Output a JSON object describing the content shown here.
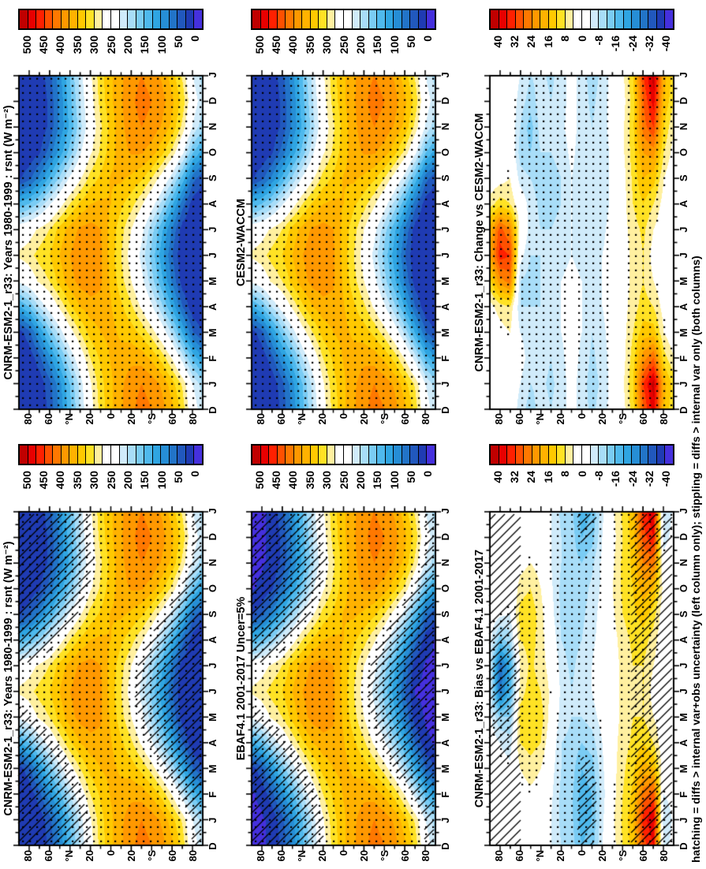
{
  "footnote": "hatching = diffs > internal var+obs uncertainty (left column only); stippling = diffs > internal var only (both columns)",
  "chart_data": {
    "type": "heatmap",
    "description": "Six latitude-by-month contour (Hovmoller) panels of TOA net shortwave radiation (rsnt, W m-2): model climatologies, observations, bias and change fields; figure drawn in landscape and rotated 90 degrees counter-clockwise on the page",
    "months_axis": [
      "D",
      "J",
      "F",
      "M",
      "A",
      "M",
      "J",
      "J",
      "A",
      "S",
      "O",
      "N",
      "D",
      "J"
    ],
    "lat_axis": [
      "80",
      "60",
      "°N",
      "20",
      "0",
      "20",
      "°S",
      "60",
      "80"
    ],
    "lat_axis_values_deg": [
      80,
      60,
      40,
      20,
      0,
      -20,
      -40,
      -60,
      -80
    ],
    "latitudes_deg": [
      90,
      80,
      70,
      60,
      50,
      40,
      30,
      20,
      10,
      0,
      -10,
      -20,
      -30,
      -40,
      -50,
      -60,
      -70,
      -80,
      -90
    ],
    "colorbar": {
      "segments": 22,
      "rsnt_labels": [
        "500",
        "450",
        "400",
        "350",
        "300",
        "250",
        "200",
        "150",
        "100",
        "50",
        "0"
      ],
      "rsnt_levels": [
        0,
        25,
        50,
        75,
        100,
        125,
        150,
        175,
        200,
        225,
        250,
        275,
        300,
        325,
        350,
        375,
        400,
        425,
        450,
        475,
        500
      ],
      "diff_labels": [
        "40",
        "32",
        "24",
        "16",
        "8",
        "0",
        "-8",
        "-16",
        "-24",
        "-32",
        "-40"
      ],
      "diff_levels": [
        -40,
        -36,
        -32,
        -28,
        -24,
        -20,
        -16,
        -12,
        -8,
        -4,
        0,
        4,
        8,
        12,
        16,
        20,
        24,
        28,
        32,
        36,
        40
      ],
      "colors": [
        "#c00000",
        "#e80000",
        "#ff2000",
        "#ff5000",
        "#ff7800",
        "#ff9800",
        "#ffb200",
        "#ffc900",
        "#ffe224",
        "#fff0a0",
        "#ffffff",
        "#ffffff",
        "#d0ebfa",
        "#a8ddf8",
        "#7accf4",
        "#4fb9ed",
        "#2fa5e2",
        "#268ed6",
        "#2274c8",
        "#2158bd",
        "#1f3bb3",
        "#4530dd"
      ]
    },
    "panels": [
      {
        "title": "CNRM-ESM2-1_r33: Years 1980-1999 : rsnt (W m⁻²)",
        "field": "rsnt",
        "scale": "rsnt",
        "row": 0,
        "col": "L",
        "stipple": "all",
        "hatch": "low_value"
      },
      {
        "title": "CNRM-ESM2-1_r33: Years 1980-1999 : rsnt (W m⁻²)",
        "field": "rsnt",
        "scale": "rsnt",
        "row": 0,
        "col": "R",
        "stipple": "all",
        "hatch": "none"
      },
      {
        "title": "EBAF4.1 2001-2017 Uncer=5%",
        "field": "rsnt",
        "scale": "rsnt",
        "row": 1,
        "col": "L",
        "stipple": "all",
        "hatch": "low_value",
        "zero_purple": true
      },
      {
        "title": "CESM2-WACCM",
        "field": "rsnt",
        "scale": "rsnt",
        "row": 1,
        "col": "R",
        "stipple": "all",
        "hatch": "none"
      },
      {
        "title": "CNRM-ESM2-1_r33: Bias vs EBAF4.1 2001-2017",
        "field": "bias",
        "scale": "diff",
        "row": 2,
        "col": "L",
        "stipple": "sig",
        "hatch": "polar_sig"
      },
      {
        "title": "CNRM-ESM2-1_r33: Change vs CESM2-WACCM",
        "field": "change",
        "scale": "diff",
        "row": 2,
        "col": "R",
        "stipple": "sig",
        "hatch": "none"
      }
    ],
    "fields": {
      "rsnt": [
        [
          0,
          0,
          0,
          10,
          120,
          230,
          280,
          250,
          130,
          20,
          0,
          0,
          0,
          0
        ],
        [
          0,
          0,
          5,
          40,
          150,
          250,
          290,
          260,
          150,
          40,
          5,
          0,
          0,
          0
        ],
        [
          5,
          5,
          40,
          100,
          200,
          280,
          310,
          280,
          180,
          80,
          20,
          5,
          5,
          5
        ],
        [
          30,
          40,
          90,
          160,
          240,
          300,
          325,
          300,
          220,
          130,
          60,
          30,
          30,
          40
        ],
        [
          80,
          90,
          140,
          210,
          280,
          335,
          350,
          335,
          260,
          180,
          110,
          80,
          80,
          90
        ],
        [
          140,
          150,
          200,
          260,
          320,
          365,
          375,
          360,
          300,
          230,
          160,
          130,
          140,
          150
        ],
        [
          200,
          210,
          250,
          300,
          350,
          385,
          390,
          380,
          330,
          270,
          220,
          190,
          200,
          210
        ],
        [
          260,
          270,
          300,
          335,
          365,
          390,
          395,
          385,
          350,
          310,
          270,
          250,
          260,
          270
        ],
        [
          310,
          315,
          330,
          350,
          365,
          380,
          380,
          375,
          355,
          330,
          305,
          295,
          310,
          315
        ],
        [
          345,
          345,
          352,
          358,
          352,
          345,
          340,
          342,
          350,
          352,
          340,
          336,
          345,
          345
        ],
        [
          372,
          370,
          360,
          345,
          330,
          310,
          300,
          310,
          330,
          355,
          365,
          368,
          372,
          370
        ],
        [
          395,
          390,
          368,
          338,
          305,
          275,
          260,
          275,
          310,
          345,
          378,
          390,
          395,
          390
        ],
        [
          410,
          400,
          365,
          318,
          270,
          235,
          215,
          235,
          280,
          330,
          378,
          400,
          410,
          400
        ],
        [
          400,
          390,
          345,
          288,
          230,
          185,
          165,
          185,
          240,
          300,
          362,
          392,
          400,
          390
        ],
        [
          385,
          370,
          315,
          248,
          180,
          130,
          110,
          130,
          190,
          260,
          332,
          372,
          385,
          370
        ],
        [
          355,
          335,
          272,
          192,
          120,
          70,
          50,
          70,
          130,
          210,
          292,
          342,
          355,
          335
        ],
        [
          315,
          295,
          212,
          122,
          50,
          10,
          0,
          10,
          60,
          140,
          232,
          292,
          315,
          295
        ],
        [
          245,
          225,
          142,
          52,
          5,
          0,
          0,
          0,
          10,
          60,
          152,
          222,
          245,
          225
        ],
        [
          205,
          185,
          102,
          22,
          0,
          0,
          0,
          0,
          0,
          30,
          112,
          182,
          205,
          185
        ]
      ],
      "bias": [
        [
          0,
          0,
          0,
          0,
          0,
          -2,
          -3,
          -3,
          -2,
          0,
          0,
          0,
          0,
          0
        ],
        [
          0,
          0,
          0,
          -2,
          -4,
          -12,
          -30,
          -32,
          -14,
          -3,
          0,
          0,
          0,
          0
        ],
        [
          0,
          0,
          0,
          -3,
          -6,
          -12,
          -18,
          -20,
          -10,
          -4,
          -2,
          0,
          0,
          0
        ],
        [
          0,
          0,
          2,
          4,
          8,
          10,
          6,
          4,
          8,
          10,
          6,
          2,
          0,
          0
        ],
        [
          2,
          2,
          3,
          6,
          10,
          12,
          10,
          9,
          10,
          11,
          8,
          4,
          2,
          2
        ],
        [
          2,
          2,
          2,
          4,
          8,
          10,
          8,
          6,
          6,
          6,
          4,
          2,
          2,
          2
        ],
        [
          -4,
          -4,
          -3,
          -2,
          0,
          2,
          3,
          2,
          0,
          -2,
          -3,
          -4,
          -4,
          -4
        ],
        [
          -8,
          -9,
          -9,
          -8,
          -8,
          -6,
          -5,
          -6,
          -8,
          -9,
          -9,
          -8,
          -8,
          -9
        ],
        [
          -10,
          -11,
          -11,
          -10,
          -9,
          -8,
          -8,
          -9,
          -10,
          -10,
          -10,
          -10,
          -10,
          -11
        ],
        [
          -16,
          -18,
          -18,
          -16,
          -12,
          -8,
          -6,
          -6,
          -8,
          -9,
          -10,
          -12,
          -16,
          -18
        ],
        [
          -14,
          -16,
          -16,
          -14,
          -10,
          -6,
          -4,
          -4,
          -5,
          -6,
          -7,
          -9,
          -14,
          -16
        ],
        [
          -4,
          -5,
          -6,
          -5,
          -4,
          -2,
          0,
          0,
          -2,
          -2,
          -3,
          -3,
          -4,
          -5
        ],
        [
          2,
          3,
          2,
          2,
          2,
          2,
          2,
          2,
          2,
          3,
          4,
          3,
          2,
          3
        ],
        [
          8,
          9,
          8,
          7,
          6,
          5,
          5,
          5,
          6,
          8,
          9,
          9,
          8,
          9
        ],
        [
          14,
          15,
          13,
          11,
          9,
          8,
          7,
          8,
          9,
          11,
          12,
          13,
          14,
          15
        ],
        [
          30,
          34,
          26,
          18,
          12,
          8,
          8,
          8,
          10,
          14,
          18,
          24,
          30,
          34
        ],
        [
          36,
          40,
          30,
          16,
          8,
          4,
          2,
          4,
          6,
          10,
          16,
          26,
          36,
          40
        ],
        [
          -6,
          -8,
          -4,
          0,
          0,
          0,
          0,
          0,
          0,
          0,
          2,
          -2,
          -6,
          -8
        ],
        [
          -2,
          -3,
          -2,
          0,
          0,
          0,
          0,
          0,
          0,
          0,
          0,
          0,
          -2,
          -3
        ]
      ],
      "change": [
        [
          0,
          0,
          0,
          0,
          2,
          10,
          18,
          16,
          6,
          0,
          0,
          0,
          0,
          0
        ],
        [
          0,
          0,
          0,
          2,
          6,
          22,
          34,
          30,
          10,
          2,
          0,
          0,
          0,
          0
        ],
        [
          0,
          0,
          2,
          4,
          8,
          26,
          32,
          24,
          8,
          4,
          2,
          0,
          0,
          0
        ],
        [
          -6,
          -4,
          -2,
          -4,
          -8,
          -8,
          -2,
          2,
          0,
          -6,
          -10,
          -8,
          -6,
          -4
        ],
        [
          -10,
          -8,
          -6,
          -6,
          -8,
          -10,
          -8,
          -6,
          -6,
          -8,
          -12,
          -14,
          -10,
          -8
        ],
        [
          -6,
          -7,
          -6,
          -6,
          -8,
          -8,
          -8,
          -8,
          -9,
          -10,
          -8,
          -6,
          -6,
          -7
        ],
        [
          -8,
          -9,
          -8,
          -7,
          -6,
          -6,
          -7,
          -8,
          -10,
          -10,
          -8,
          -7,
          -8,
          -9
        ],
        [
          -6,
          -6,
          -5,
          -4,
          -4,
          -4,
          -5,
          -6,
          -8,
          -8,
          -6,
          -5,
          -6,
          -6
        ],
        [
          -2,
          -2,
          -2,
          -2,
          -2,
          -3,
          -4,
          -4,
          -4,
          -4,
          -3,
          -2,
          -2,
          -2
        ],
        [
          -6,
          -6,
          -5,
          -4,
          -4,
          -4,
          -5,
          -6,
          -6,
          -6,
          -6,
          -6,
          -6,
          -6
        ],
        [
          -9,
          -10,
          -9,
          -8,
          -7,
          -6,
          -6,
          -7,
          -8,
          -8,
          -8,
          -8,
          -9,
          -10
        ],
        [
          -6,
          -7,
          -6,
          -5,
          -4,
          -4,
          -4,
          -5,
          -6,
          -6,
          -6,
          -6,
          -6,
          -7
        ],
        [
          -2,
          -2,
          -2,
          -2,
          -2,
          -2,
          -2,
          -2,
          -3,
          -3,
          -3,
          -2,
          -2,
          -2
        ],
        [
          2,
          3,
          2,
          2,
          2,
          2,
          2,
          2,
          2,
          2,
          3,
          3,
          2,
          3
        ],
        [
          10,
          12,
          10,
          8,
          6,
          5,
          5,
          6,
          8,
          9,
          10,
          11,
          10,
          12
        ],
        [
          28,
          32,
          22,
          14,
          10,
          8,
          8,
          9,
          12,
          16,
          20,
          26,
          28,
          32
        ],
        [
          38,
          42,
          28,
          14,
          8,
          4,
          2,
          4,
          8,
          14,
          22,
          32,
          38,
          42
        ],
        [
          16,
          18,
          10,
          4,
          2,
          0,
          0,
          0,
          2,
          4,
          8,
          12,
          16,
          18
        ],
        [
          8,
          10,
          4,
          0,
          0,
          0,
          0,
          0,
          0,
          0,
          2,
          4,
          8,
          10
        ]
      ]
    }
  }
}
